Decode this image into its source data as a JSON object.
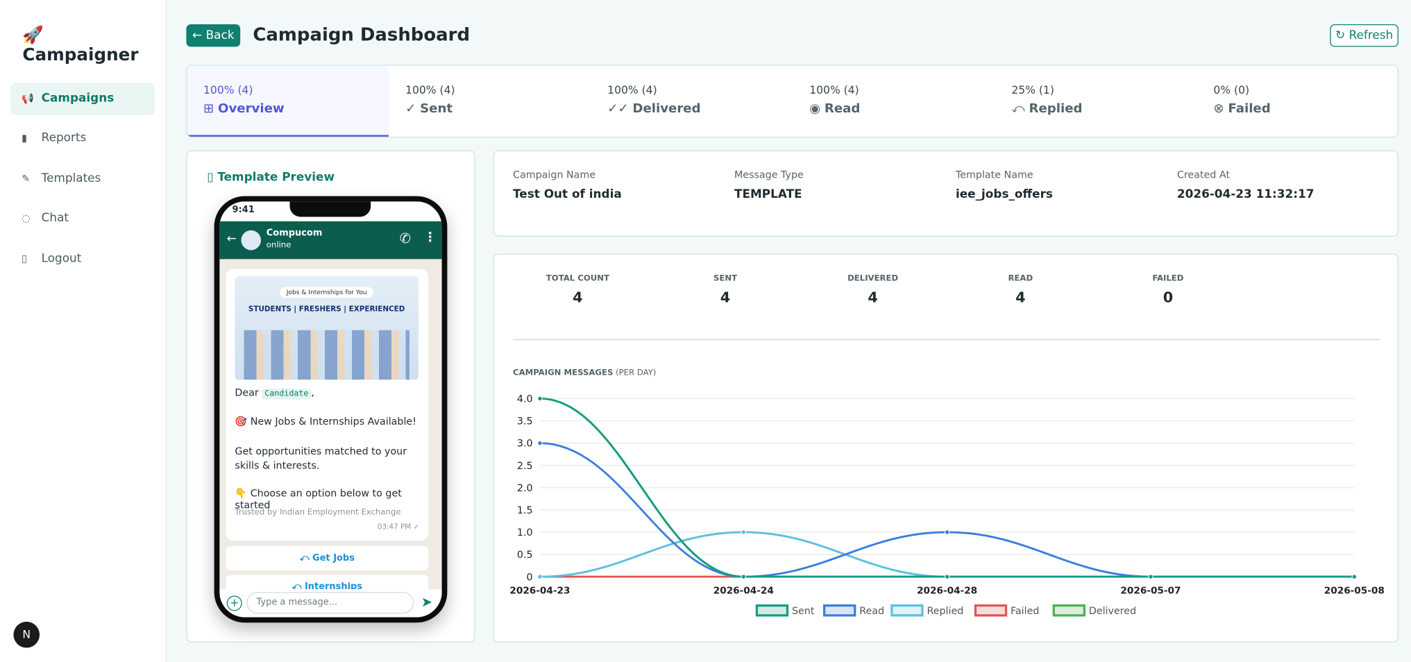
{
  "sidebar": {
    "brand": "Campaigner",
    "nav": [
      "Campaigns",
      "Reports",
      "Templates",
      "Chat",
      "Logout"
    ],
    "badge": "N"
  },
  "header": {
    "back": "Back",
    "title": "Campaign Dashboard",
    "refresh": "Refresh"
  },
  "tabs": [
    {
      "stat": "100% (4)",
      "label": "Overview"
    },
    {
      "stat": "100% (4)",
      "label": "Sent"
    },
    {
      "stat": "100% (4)",
      "label": "Delivered"
    },
    {
      "stat": "100% (4)",
      "label": "Read"
    },
    {
      "stat": "25% (1)",
      "label": "Replied"
    },
    {
      "stat": "0% (0)",
      "label": "Failed"
    }
  ],
  "preview": {
    "title": "Template Preview",
    "time": "9:41",
    "contact": "Compucom",
    "status": "online",
    "banner_tag": "Jobs & Internships for You",
    "banner_headline": "STUDENTS | FRESHERS | EXPERIENCED",
    "greeting": "Dear",
    "variable": "Candidate",
    "greeting_end": ",",
    "lines": [
      "🎯 New Jobs & Internships Available!",
      "Get opportunities matched to your skills & interests.",
      "👇 Choose an option below to get started"
    ],
    "footer": "Trusted by Indian Employment Exchange",
    "timestamp": "03:47 PM",
    "buttons": [
      "Get Jobs",
      "Internships"
    ],
    "input": "Type a message..."
  },
  "details": [
    {
      "label": "Campaign Name",
      "value": "Test Out of india"
    },
    {
      "label": "Message Type",
      "value": "TEMPLATE"
    },
    {
      "label": "Template Name",
      "value": "iee_jobs_offers"
    },
    {
      "label": "Created At",
      "value": "2026-04-23 11:32:17"
    }
  ],
  "stats": [
    {
      "label": "TOTAL COUNT",
      "value": 4
    },
    {
      "label": "SENT",
      "value": 4
    },
    {
      "label": "DELIVERED",
      "value": 4
    },
    {
      "label": "READ",
      "value": 4
    },
    {
      "label": "FAILED",
      "value": 0
    }
  ],
  "chart_data": {
    "type": "line",
    "title": "CAMPAIGN MESSAGES",
    "subtitle": "(PER DAY)",
    "categories": [
      "2026-04-23",
      "2026-04-24",
      "2026-04-28",
      "2026-05-07",
      "2026-05-08"
    ],
    "series": [
      {
        "name": "Sent",
        "color": "#169c83",
        "values": [
          4,
          0,
          0,
          0,
          0
        ]
      },
      {
        "name": "Read",
        "color": "#3b7ddd",
        "values": [
          3,
          0,
          1,
          0,
          0
        ]
      },
      {
        "name": "Replied",
        "color": "#5bc0de",
        "values": [
          0,
          1,
          0,
          0,
          0
        ]
      },
      {
        "name": "Failed",
        "color": "#e05555",
        "values": [
          0,
          0,
          0,
          0,
          0
        ]
      },
      {
        "name": "Delivered",
        "color": "#4caf50",
        "values": [
          4,
          0,
          0,
          0,
          0
        ]
      }
    ],
    "ylim": [
      0,
      4
    ],
    "yticks": [
      0,
      0.5,
      {
        "value": 1,
        "label": "1.0"
      },
      1.5,
      {
        "value": 2,
        "label": "2.0"
      },
      2.5,
      {
        "value": 3,
        "label": "3.0"
      },
      3.5,
      {
        "value": 4,
        "label": "4.0"
      }
    ],
    "grid": true,
    "legend": "bottom"
  }
}
